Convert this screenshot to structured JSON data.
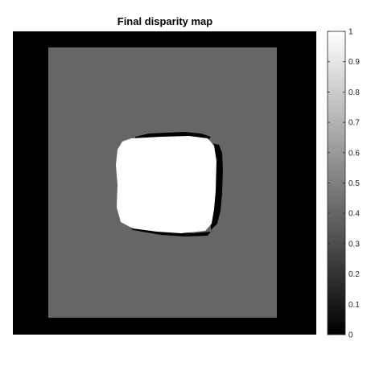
{
  "chart_data": {
    "type": "heatmap",
    "title": "Final disparity map",
    "xlabel": "",
    "ylabel": "",
    "colormap": "gray",
    "clim": [
      0,
      1
    ],
    "colorbar": {
      "placement": "right",
      "ticks": [
        "0",
        "0.1",
        "0.2",
        "0.3",
        "0.4",
        "0.5",
        "0.6",
        "0.7",
        "0.8",
        "0.9",
        "1"
      ],
      "tick_values": [
        0,
        0.1,
        0.2,
        0.3,
        0.4,
        0.5,
        0.6,
        0.7,
        0.8,
        0.9,
        1
      ]
    },
    "regions": [
      {
        "name": "border",
        "value": 0
      },
      {
        "name": "background",
        "value": 0.4
      },
      {
        "name": "center-object",
        "value": 1
      },
      {
        "name": "object-edge-artifacts",
        "value": 0
      }
    ],
    "axes_ticks_visible": false,
    "grid": false
  }
}
